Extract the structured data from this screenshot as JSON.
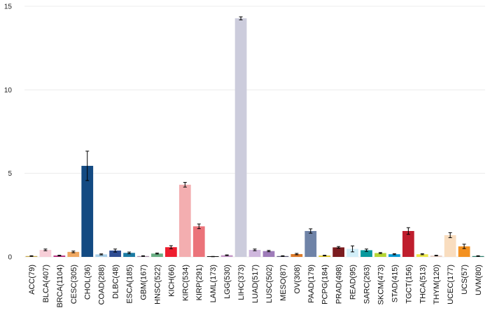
{
  "chart_data": {
    "type": "bar",
    "title": "",
    "xlabel": "",
    "ylabel": "",
    "ylim": [
      0,
      15
    ],
    "yticks": [
      0,
      5,
      10,
      15
    ],
    "grid": true,
    "categories": [
      "ACC(79)",
      "BLCA(407)",
      "BRCA(1104)",
      "CESC(305)",
      "CHOL(36)",
      "COAD(288)",
      "DLBC(48)",
      "ESCA(185)",
      "GBM(167)",
      "HNSC(522)",
      "KICH(66)",
      "KIRC(534)",
      "KIRP(291)",
      "LAML(173)",
      "LGG(530)",
      "LIHC(373)",
      "LUAD(517)",
      "LUSC(502)",
      "MESO(87)",
      "OV(308)",
      "PAAD(179)",
      "PCPG(184)",
      "PRAD(498)",
      "READ(95)",
      "SARC(263)",
      "SKCM(473)",
      "STAD(415)",
      "TGCT(156)",
      "THCA(513)",
      "THYM(120)",
      "UCEC(177)",
      "UCS(57)",
      "UVM(80)"
    ],
    "values": [
      0.05,
      0.42,
      0.08,
      0.3,
      5.45,
      0.15,
      0.38,
      0.24,
      0.05,
      0.2,
      0.58,
      4.32,
      1.83,
      0.02,
      0.1,
      14.28,
      0.42,
      0.35,
      0.05,
      0.17,
      1.55,
      0.08,
      0.57,
      0.48,
      0.4,
      0.23,
      0.16,
      1.55,
      0.16,
      0.08,
      1.3,
      0.63,
      0.05
    ],
    "errors": [
      0.02,
      0.05,
      0.02,
      0.05,
      0.88,
      0.03,
      0.09,
      0.05,
      0.02,
      0.03,
      0.09,
      0.14,
      0.14,
      0.01,
      0.02,
      0.09,
      0.05,
      0.04,
      0.02,
      0.04,
      0.13,
      0.02,
      0.05,
      0.18,
      0.07,
      0.03,
      0.03,
      0.2,
      0.03,
      0.02,
      0.15,
      0.13,
      0.02
    ],
    "colors": [
      "#c6a84a",
      "#f7cfd8",
      "#b72d7e",
      "#f0a861",
      "#134a82",
      "#a9cfe8",
      "#2f4d93",
      "#1b7ba3",
      "#a98fa8",
      "#6aaf84",
      "#ee1d2e",
      "#f3aeb0",
      "#eb737a",
      "#121212",
      "#c494c6",
      "#ccccdc",
      "#cfb7dd",
      "#9e7bb9",
      "#5e5a78",
      "#dd7a2a",
      "#6f83a7",
      "#e2c92d",
      "#7b1c1f",
      "#d2eef8",
      "#08999d",
      "#b5d534",
      "#0a9bd6",
      "#bf1e2d",
      "#ece84b",
      "#e8cdc2",
      "#f9ddbf",
      "#f39121",
      "#2a7d6b"
    ]
  }
}
